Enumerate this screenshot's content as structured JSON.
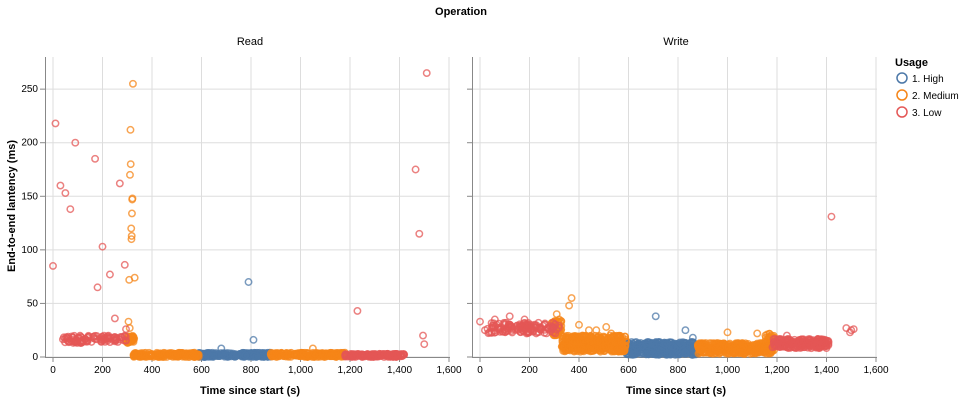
{
  "chart_data": {
    "type": "scatter",
    "title": "Operation",
    "xlabel": "Time since start (s)",
    "ylabel": "End-to-end lantency (ms)",
    "xlim": [
      0,
      1600
    ],
    "ylim": [
      0,
      280
    ],
    "x_ticks": [
      0,
      200,
      400,
      600,
      800,
      1000,
      1200,
      1400,
      1600
    ],
    "x_tick_labels": [
      "0",
      "200",
      "400",
      "600",
      "800",
      "1,000",
      "1,200",
      "1,400",
      "1,600"
    ],
    "y_ticks": [
      0,
      50,
      100,
      150,
      200,
      250
    ],
    "y_tick_labels": [
      "0",
      "50",
      "100",
      "150",
      "200",
      "250"
    ],
    "grid": true,
    "legend_position": "right",
    "legend_title": "Usage",
    "categories": [
      "1. High",
      "2. Medium",
      "3. Low"
    ],
    "colors": {
      "1. High": "#4c78a8",
      "2. Medium": "#f58518",
      "3. Low": "#e45756"
    },
    "facets": [
      {
        "name": "Read",
        "series": [
          {
            "name": "1. High",
            "points": [
              [
                680,
                8
              ],
              [
                790,
                70
              ],
              [
                810,
                16
              ]
            ],
            "bands": [
              {
                "x0": 590,
                "x1": 880,
                "lo": 0,
                "hi": 4,
                "n": 220
              }
            ]
          },
          {
            "name": "2. Medium",
            "points": [
              [
                305,
                33
              ],
              [
                308,
                72
              ],
              [
                310,
                27
              ],
              [
                311,
                170
              ],
              [
                313,
                212
              ],
              [
                314,
                180
              ],
              [
                316,
                120
              ],
              [
                317,
                110
              ],
              [
                318,
                113
              ],
              [
                319,
                134
              ],
              [
                320,
                147
              ],
              [
                321,
                148
              ],
              [
                323,
                255
              ],
              [
                330,
                74
              ],
              [
                1050,
                8
              ]
            ],
            "bands": [
              {
                "x0": 295,
                "x1": 330,
                "lo": 13,
                "hi": 20,
                "n": 40
              },
              {
                "x0": 325,
                "x1": 590,
                "lo": 0,
                "hi": 4,
                "n": 210
              },
              {
                "x0": 880,
                "x1": 1180,
                "lo": 0,
                "hi": 4,
                "n": 230
              }
            ]
          },
          {
            "name": "3. Low",
            "points": [
              [
                0,
                85
              ],
              [
                10,
                218
              ],
              [
                30,
                160
              ],
              [
                50,
                153
              ],
              [
                70,
                138
              ],
              [
                90,
                200
              ],
              [
                170,
                185
              ],
              [
                180,
                65
              ],
              [
                200,
                103
              ],
              [
                230,
                77
              ],
              [
                250,
                36
              ],
              [
                270,
                162
              ],
              [
                290,
                86
              ],
              [
                295,
                26
              ],
              [
                1230,
                43
              ],
              [
                1465,
                175
              ],
              [
                1480,
                115
              ],
              [
                1495,
                20
              ],
              [
                1500,
                12
              ],
              [
                1510,
                265
              ]
            ],
            "bands": [
              {
                "x0": 40,
                "x1": 300,
                "lo": 13,
                "hi": 20,
                "n": 110
              },
              {
                "x0": 1180,
                "x1": 1420,
                "lo": 0,
                "hi": 3,
                "n": 180
              }
            ]
          }
        ]
      },
      {
        "name": "Write",
        "series": [
          {
            "name": "1. High",
            "points": [
              [
                710,
                38
              ],
              [
                830,
                25
              ],
              [
                860,
                18
              ]
            ],
            "bands": [
              {
                "x0": 590,
                "x1": 880,
                "lo": 2,
                "hi": 14,
                "n": 460
              }
            ]
          },
          {
            "name": "2. Medium",
            "points": [
              [
                310,
                40
              ],
              [
                320,
                35
              ],
              [
                360,
                48
              ],
              [
                370,
                55
              ],
              [
                400,
                30
              ],
              [
                440,
                25
              ],
              [
                470,
                25
              ],
              [
                510,
                28
              ],
              [
                530,
                22
              ],
              [
                1000,
                23
              ],
              [
                1120,
                22
              ],
              [
                1160,
                21
              ]
            ],
            "bands": [
              {
                "x0": 290,
                "x1": 330,
                "lo": 20,
                "hi": 34,
                "n": 50
              },
              {
                "x0": 330,
                "x1": 590,
                "lo": 5,
                "hi": 20,
                "n": 420
              },
              {
                "x0": 880,
                "x1": 1180,
                "lo": 3,
                "hi": 13,
                "n": 380
              },
              {
                "x0": 1150,
                "x1": 1190,
                "lo": 5,
                "hi": 22,
                "n": 40
              }
            ]
          },
          {
            "name": "3. Low",
            "points": [
              [
                0,
                33
              ],
              [
                20,
                25
              ],
              [
                50,
                29
              ],
              [
                60,
                35
              ],
              [
                100,
                30
              ],
              [
                120,
                38
              ],
              [
                180,
                35
              ],
              [
                220,
                28
              ],
              [
                260,
                30
              ],
              [
                1240,
                20
              ],
              [
                1390,
                14
              ],
              [
                1420,
                131
              ],
              [
                1480,
                27
              ],
              [
                1495,
                23
              ],
              [
                1500,
                25
              ],
              [
                1510,
                26
              ]
            ],
            "bands": [
              {
                "x0": 30,
                "x1": 320,
                "lo": 22,
                "hi": 32,
                "n": 140
              },
              {
                "x0": 1180,
                "x1": 1410,
                "lo": 8,
                "hi": 17,
                "n": 220
              }
            ]
          }
        ]
      }
    ]
  }
}
